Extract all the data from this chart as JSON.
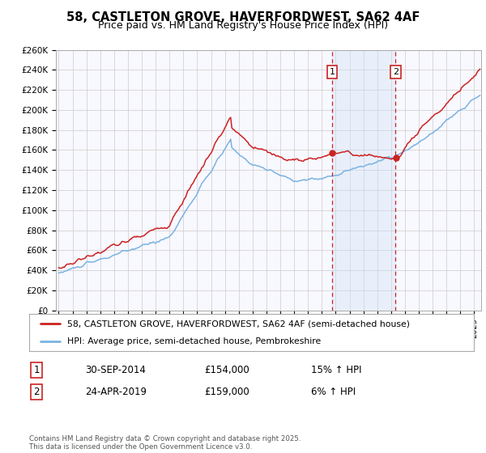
{
  "title": "58, CASTLETON GROVE, HAVERFORDWEST, SA62 4AF",
  "subtitle": "Price paid vs. HM Land Registry's House Price Index (HPI)",
  "background_color": "#ffffff",
  "plot_bg_color": "#f8f8ff",
  "grid_color": "#cccccc",
  "ylim": [
    0,
    260000
  ],
  "yticks": [
    0,
    20000,
    40000,
    60000,
    80000,
    100000,
    120000,
    140000,
    160000,
    180000,
    200000,
    220000,
    240000,
    260000
  ],
  "ytick_labels": [
    "£0",
    "£20K",
    "£40K",
    "£60K",
    "£80K",
    "£100K",
    "£120K",
    "£140K",
    "£160K",
    "£180K",
    "£200K",
    "£220K",
    "£240K",
    "£260K"
  ],
  "hpi_color": "#7ab3e0",
  "price_color": "#cc2222",
  "shade_color": "#cce0f5",
  "vline_color": "#cc2222",
  "purchase1_year": 2014.75,
  "purchase2_year": 2019.33,
  "purchase1_price": 154000,
  "purchase2_price": 159000,
  "purchase1_hpi": 134000,
  "purchase2_hpi": 150000,
  "purchase1": {
    "date": "30-SEP-2014",
    "price": 154000,
    "pct": "15%",
    "dir": "↑"
  },
  "purchase2": {
    "date": "24-APR-2019",
    "price": 159000,
    "pct": "6%",
    "dir": "↑"
  },
  "legend1": "58, CASTLETON GROVE, HAVERFORDWEST, SA62 4AF (semi-detached house)",
  "legend2": "HPI: Average price, semi-detached house, Pembrokeshire",
  "footer": "Contains HM Land Registry data © Crown copyright and database right 2025.\nThis data is licensed under the Open Government Licence v3.0.",
  "start_year": 1995,
  "end_year": 2025,
  "xlim_left": 1994.8,
  "xlim_right": 2025.5
}
